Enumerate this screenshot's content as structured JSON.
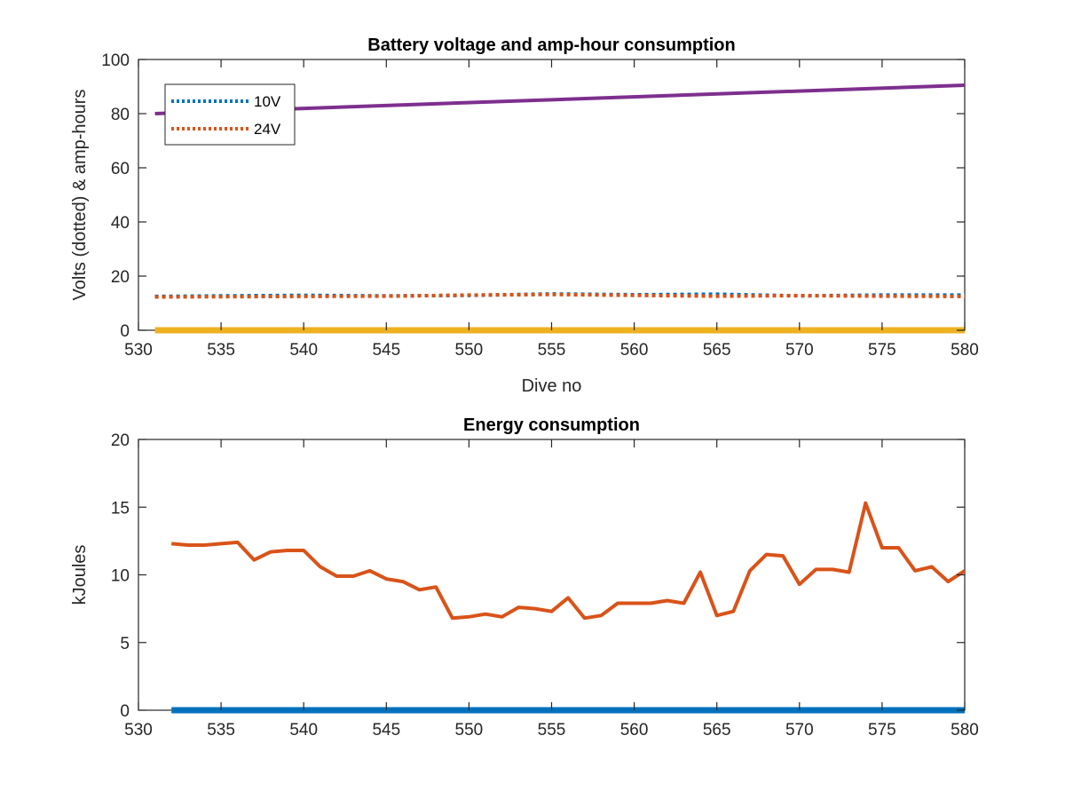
{
  "chart_data": [
    {
      "type": "line",
      "title": "Battery voltage and amp-hour consumption",
      "xlabel": "Dive no",
      "ylabel": "Volts (dotted) & amp-hours",
      "xlim": [
        530,
        580
      ],
      "ylim": [
        0,
        100
      ],
      "xticks": [
        530,
        535,
        540,
        545,
        550,
        555,
        560,
        565,
        570,
        575,
        580
      ],
      "yticks": [
        0,
        20,
        40,
        60,
        80,
        100
      ],
      "legend": {
        "placement": "top-left",
        "entries": [
          "10V",
          "24V"
        ]
      },
      "series": [
        {
          "name": "10V",
          "color": "#0072BD",
          "style": "dotted",
          "x": [
            531,
            535,
            540,
            545,
            550,
            555,
            560,
            565,
            570,
            575,
            580
          ],
          "y": [
            12.5,
            12.7,
            12.9,
            12.7,
            12.9,
            13.4,
            13.1,
            13.3,
            12.7,
            13.0,
            13.0
          ]
        },
        {
          "name": "24V",
          "color": "#D95319",
          "style": "dotted",
          "x": [
            531,
            535,
            540,
            545,
            550,
            555,
            560,
            565,
            570,
            575,
            580
          ],
          "y": [
            12.3,
            12.4,
            12.5,
            12.6,
            13.0,
            13.2,
            12.9,
            12.6,
            12.8,
            12.6,
            12.5
          ]
        },
        {
          "color": "#EDB120",
          "style": "solid",
          "x": [
            531,
            580
          ],
          "y": [
            0,
            0
          ]
        },
        {
          "color": "#7E2F8E",
          "style": "solid",
          "x": [
            531,
            580
          ],
          "y": [
            80,
            90.5
          ]
        }
      ]
    },
    {
      "type": "line",
      "title": "Energy consumption",
      "xlabel": "",
      "ylabel": "kJoules",
      "xlim": [
        530,
        580
      ],
      "ylim": [
        0,
        20
      ],
      "xticks": [
        530,
        535,
        540,
        545,
        550,
        555,
        560,
        565,
        570,
        575,
        580
      ],
      "yticks": [
        0,
        5,
        10,
        15,
        20
      ],
      "series": [
        {
          "color": "#D95319",
          "style": "solid",
          "x": [
            532,
            533,
            534,
            535,
            536,
            537,
            538,
            539,
            540,
            541,
            542,
            543,
            544,
            545,
            546,
            547,
            548,
            549,
            550,
            551,
            552,
            553,
            554,
            555,
            556,
            557,
            558,
            559,
            560,
            561,
            562,
            563,
            564,
            565,
            566,
            567,
            568,
            569,
            570,
            571,
            572,
            573,
            574,
            575,
            576,
            577,
            578,
            579,
            580
          ],
          "y": [
            12.3,
            12.2,
            12.2,
            12.3,
            12.4,
            11.1,
            11.7,
            11.8,
            11.8,
            10.6,
            9.9,
            9.9,
            10.3,
            9.7,
            9.5,
            8.9,
            9.1,
            6.8,
            6.9,
            7.1,
            6.9,
            7.6,
            7.5,
            7.3,
            8.3,
            6.8,
            7.0,
            7.9,
            7.9,
            7.9,
            8.1,
            7.9,
            10.2,
            7.0,
            7.3,
            10.3,
            11.5,
            11.4,
            9.3,
            10.4,
            10.4,
            10.2,
            15.3,
            12.0,
            12.0,
            10.3,
            10.6,
            9.5,
            10.3
          ]
        },
        {
          "color": "#0072BD",
          "style": "solid",
          "x": [
            532,
            580
          ],
          "y": [
            0,
            0
          ]
        }
      ]
    }
  ]
}
